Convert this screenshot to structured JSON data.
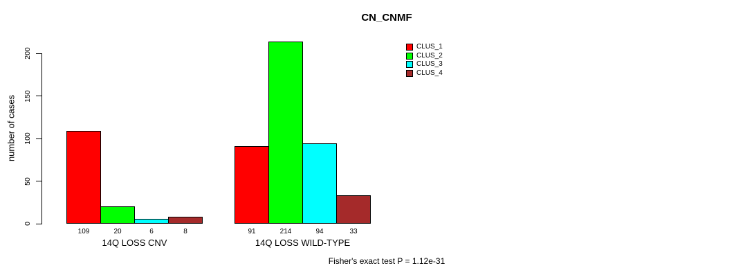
{
  "window": {
    "background": "#FFFFFF"
  },
  "chart_data": {
    "type": "bar",
    "title": "CN_CNMF",
    "ylabel": "number of cases",
    "xlabel": "",
    "ylim": [
      0,
      220
    ],
    "yticks": [
      0,
      50,
      100,
      150,
      200
    ],
    "grid": false,
    "legend_position": "top-right",
    "categories": [
      "14Q LOSS CNV",
      "14Q LOSS WILD-TYPE"
    ],
    "series": [
      {
        "name": "CLUS_1",
        "color": "#FF0000",
        "values": [
          109,
          91
        ]
      },
      {
        "name": "CLUS_2",
        "color": "#00FF00",
        "values": [
          20,
          214
        ]
      },
      {
        "name": "CLUS_3",
        "color": "#00FFFF",
        "values": [
          6,
          94
        ]
      },
      {
        "name": "CLUS_4",
        "color": "#A52A2A",
        "values": [
          8,
          33
        ]
      }
    ],
    "annotation": "Fisher's exact test P = 1.12e-31"
  }
}
